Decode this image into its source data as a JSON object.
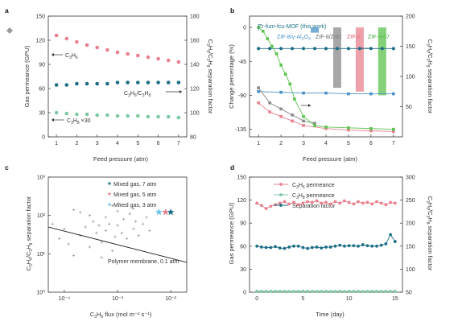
{
  "chart_data": [
    {
      "panel": "a",
      "type": "scatter",
      "xlabel": "Feed pressure (atm)",
      "ylabel": "Gas permeance (GPU)",
      "y2label": "C3H6/C3H8 separation factor",
      "xlim": [
        0.6,
        7.4
      ],
      "ylim": [
        0,
        150
      ],
      "y2lim": [
        80,
        180
      ],
      "xticks": [
        1,
        2,
        3,
        4,
        5,
        6,
        7
      ],
      "yticks": [
        0,
        30,
        60,
        90,
        120,
        150
      ],
      "y2ticks": [
        80,
        100,
        120,
        140,
        160,
        180
      ],
      "x": [
        1,
        1.5,
        2,
        2.5,
        3,
        3.5,
        4,
        4.5,
        5,
        5.5,
        6,
        6.5,
        7
      ],
      "series": [
        {
          "axis": "left",
          "color": "#e8808f",
          "values": [
            126,
            122,
            118,
            114,
            111,
            108,
            105,
            103,
            101,
            99,
            97,
            95,
            93
          ]
        },
        {
          "axis": "right",
          "color": "#1d6f86",
          "values": [
            123,
            123,
            124,
            124,
            124,
            124,
            125,
            125,
            125,
            125,
            125,
            125,
            125
          ]
        },
        {
          "axis": "left",
          "color": "#7ec9a4",
          "values": [
            30,
            29,
            28,
            28,
            27,
            27,
            26,
            26,
            26,
            25,
            25,
            25,
            24
          ]
        }
      ],
      "annotations": [
        {
          "text": "C3H6",
          "x": 1.0,
          "y": 103
        },
        {
          "text": "C3H6/C3H8",
          "x": 4.6,
          "y": 54
        },
        {
          "text": "C3H8 ×30",
          "x": 1.0,
          "y": 10
        }
      ]
    },
    {
      "panel": "b",
      "type": "line",
      "xlabel": "Feed pressure (atm)",
      "ylabel": "Change percentage (%)",
      "y2label": "C3H6/C3H8 separation factor",
      "xlim": [
        0.6,
        7.4
      ],
      "ylim": [
        -145,
        15
      ],
      "y2lim": [
        0,
        200
      ],
      "xticks": [
        1,
        2,
        3,
        4,
        5,
        6,
        7
      ],
      "yticks": [
        0,
        -45,
        -90,
        -135
      ],
      "y2ticks": [
        50,
        100,
        150,
        200
      ],
      "series": [
        {
          "name": "Zr-fum-fcu-MOF (this work)",
          "color": "#1d6f86",
          "x": [
            1,
            1.5,
            2,
            2.5,
            3,
            3.5,
            4,
            4.5,
            5,
            5.5,
            6,
            6.5,
            7
          ],
          "values": [
            -28,
            -28,
            -28,
            -28,
            -28,
            -28,
            -28,
            -28,
            -28,
            -28,
            -28,
            -28,
            -28
          ]
        },
        {
          "name": "ZIF-8/γ-Al2O3",
          "color": "#4a90c8",
          "x": [
            1,
            2,
            3,
            4,
            5,
            6,
            7
          ],
          "values": [
            -85,
            -86,
            -87,
            -87,
            -88,
            -88,
            -88
          ]
        },
        {
          "name": "ZIF-8/ZnO",
          "color": "#8a8a8a",
          "x": [
            1,
            1.5,
            2,
            2.5,
            3,
            3.5
          ],
          "values": [
            -80,
            -100,
            -108,
            -116,
            -124,
            -127
          ]
        },
        {
          "name": "ZIF-8",
          "color": "#e8808f",
          "x": [
            1,
            1.5,
            2,
            2.5,
            3,
            4,
            5,
            6,
            7
          ],
          "values": [
            -100,
            -112,
            -118,
            -124,
            -130,
            -134,
            -136,
            -137,
            -138
          ]
        },
        {
          "name": "ZIF-8-67",
          "color": "#5cc24e",
          "x": [
            1,
            1.2,
            1.4,
            1.6,
            1.8,
            2,
            2.2,
            2.4,
            2.6,
            3,
            3.5,
            4,
            5,
            6,
            7
          ],
          "values": [
            0,
            -5,
            -15,
            -25,
            -35,
            -50,
            -62,
            -75,
            -95,
            -118,
            -130,
            -132,
            -133,
            -134,
            -135
          ]
        }
      ],
      "bars": [
        {
          "x": 3.5,
          "from": 0,
          "to": -7,
          "color": "#4a90c8"
        },
        {
          "x": 4.5,
          "from": 0,
          "to": -80,
          "color": "#8a8a8a"
        },
        {
          "x": 5.5,
          "from": 0,
          "to": -85,
          "color": "#e8808f"
        },
        {
          "x": 6.5,
          "from": 0,
          "to": -90,
          "color": "#5cc24e"
        }
      ],
      "legend": [
        "Zr-fum-fcu-MOF (this work)",
        "ZIF-8/γ-Al2O3",
        "ZIF-8/ZnO",
        "ZIF-8",
        "ZIF-8-67"
      ]
    },
    {
      "panel": "c",
      "type": "scatter",
      "xlabel": "C3H6 flux (mol m⁻² s⁻¹)",
      "ylabel": "C3H6/C3H8 separation factor",
      "xscale": "log",
      "yscale": "log",
      "xlim": [
        5e-05,
        0.02
      ],
      "ylim": [
        1,
        1000
      ],
      "xticks": [
        0.0001,
        0.001,
        0.01
      ],
      "xticklabels": [
        "10⁻⁴",
        "10⁻³",
        "10⁻²"
      ],
      "yticks": [
        1,
        10,
        100,
        1000
      ],
      "yticklabels": [
        "10⁰",
        "10¹",
        "10²",
        "10³"
      ],
      "legend": [
        {
          "name": "Mixed gas, 7 atm",
          "color": "#1d6f86"
        },
        {
          "name": "Mixed gas, 5 atm",
          "color": "#e8808f"
        },
        {
          "name": "Mixed gas, 3 atm",
          "color": "#6fc3e8"
        }
      ],
      "stars": [
        {
          "x": 0.006,
          "y": 122,
          "color": "#6fc3e8"
        },
        {
          "x": 0.008,
          "y": 122,
          "color": "#e8808f"
        },
        {
          "x": 0.01,
          "y": 122,
          "color": "#1d6f86"
        }
      ],
      "literature": [
        [
          6e-05,
          60
        ],
        [
          8e-05,
          25
        ],
        [
          0.0001,
          45
        ],
        [
          0.00012,
          18
        ],
        [
          0.00015,
          9
        ],
        [
          0.0002,
          30
        ],
        [
          0.00025,
          50
        ],
        [
          0.0003,
          15
        ],
        [
          0.00035,
          70
        ],
        [
          0.0004,
          35
        ],
        [
          0.0005,
          20
        ],
        [
          0.0006,
          90
        ],
        [
          0.0006,
          40
        ],
        [
          0.0007,
          60
        ],
        [
          0.0008,
          12
        ],
        [
          0.0009,
          28
        ],
        [
          0.001,
          55
        ],
        [
          0.001,
          130
        ],
        [
          0.0012,
          35
        ],
        [
          0.0013,
          80
        ],
        [
          0.0015,
          25
        ],
        [
          0.0017,
          110
        ],
        [
          0.002,
          45
        ],
        [
          0.0022,
          70
        ],
        [
          0.0025,
          30
        ],
        [
          0.003,
          60
        ],
        [
          0.0035,
          90
        ],
        [
          0.004,
          40
        ],
        [
          0.0003,
          100
        ],
        [
          0.0002,
          120
        ],
        [
          0.0005,
          8
        ],
        [
          0.00015,
          140
        ],
        [
          0.0008,
          180
        ],
        [
          0.0011,
          200
        ],
        [
          0.002,
          150
        ],
        [
          0.00045,
          55
        ]
      ],
      "trendline": {
        "x": [
          5e-05,
          0.02
        ],
        "y": [
          50,
          6
        ]
      },
      "annotations": [
        {
          "text": "Polymer membrane, 0.1 atm",
          "x": 0.003,
          "y": 8
        }
      ]
    },
    {
      "panel": "d",
      "type": "line",
      "xlabel": "Time (day)",
      "ylabel": "Gas permeance (GPU)",
      "y2label": "C3H6/C3H8 separation factor",
      "xlim": [
        -0.8,
        15.8
      ],
      "ylim": [
        0,
        150
      ],
      "y2lim": [
        50,
        300
      ],
      "xticks": [
        0,
        5,
        10,
        15
      ],
      "yticks": [
        0,
        30,
        60,
        90,
        120,
        150
      ],
      "y2ticks": [
        50,
        100,
        150,
        200,
        250,
        300
      ],
      "legend": [
        "C3H6 permeance",
        "C3H8 permeance",
        "Separation factor"
      ],
      "x": [
        0,
        0.5,
        1,
        1.5,
        2,
        2.5,
        3,
        3.5,
        4,
        4.5,
        5,
        5.5,
        6,
        6.5,
        7,
        7.5,
        8,
        8.5,
        9,
        9.5,
        10,
        10.5,
        11,
        11.5,
        12,
        12.5,
        13,
        13.5,
        14,
        14.5,
        15
      ],
      "series": [
        {
          "name": "C3H6 permeance",
          "axis": "left",
          "color": "#e8808f",
          "values": [
            116,
            113,
            109,
            112,
            114,
            116,
            118,
            115,
            117,
            114,
            116,
            118,
            117,
            119,
            116,
            117,
            115,
            118,
            116,
            119,
            117,
            115,
            118,
            116,
            117,
            115,
            118,
            116,
            114,
            117,
            116
          ]
        },
        {
          "name": "C3H8 permeance",
          "axis": "left",
          "color": "#7ec9a4",
          "values": [
            1,
            1,
            1,
            1,
            1,
            1,
            1,
            1,
            1,
            1,
            1,
            1,
            1,
            1,
            1,
            1,
            1,
            1,
            1,
            1,
            1,
            1,
            1,
            1,
            1,
            1,
            1,
            1,
            1,
            1,
            1
          ]
        },
        {
          "name": "Separation factor",
          "axis": "right",
          "color": "#1d6f86",
          "values": [
            150,
            148,
            147,
            147,
            149,
            146,
            145,
            148,
            150,
            150,
            147,
            145,
            147,
            148,
            146,
            148,
            148,
            150,
            152,
            150,
            151,
            151,
            150,
            153,
            151,
            150,
            150,
            152,
            155,
            175,
            160
          ]
        }
      ]
    }
  ],
  "labels": {
    "a": "a",
    "b": "b",
    "c": "c",
    "d": "d",
    "a_xlabel": "Feed pressure (atm)",
    "a_ylabel": "Gas permeance (GPU)",
    "b_xlabel": "Feed pressure (atm)",
    "b_ylabel": "Change percentage (%)",
    "c_xlabel": "C3H6 flux (mol m⁻² s⁻¹)",
    "d_xlabel": "Time (day)",
    "d_ylabel": "Gas permeance (GPU)",
    "a_ann_c3h6": "C3H6",
    "a_ann_sf": "C3H6/C3H8",
    "a_ann_c3h8": "C3H8 ×30",
    "b_leg0": "Zr-fum-fcu-MOF (this work)",
    "b_leg1": "ZIF-8/γ-Al2O3",
    "b_leg2": "ZIF-8/ZnO",
    "b_leg3": "ZIF-8",
    "b_leg4": "ZIF-8-67",
    "c_leg0": "Mixed gas, 7 atm",
    "c_leg1": "Mixed gas, 5 atm",
    "c_leg2": "Mixed gas, 3 atm",
    "c_ann": "Polymer membrane, 0.1 atm",
    "d_leg0": "C3H6 permeance",
    "d_leg1": "C3H8 permeance",
    "d_leg2": "Separation factor"
  }
}
